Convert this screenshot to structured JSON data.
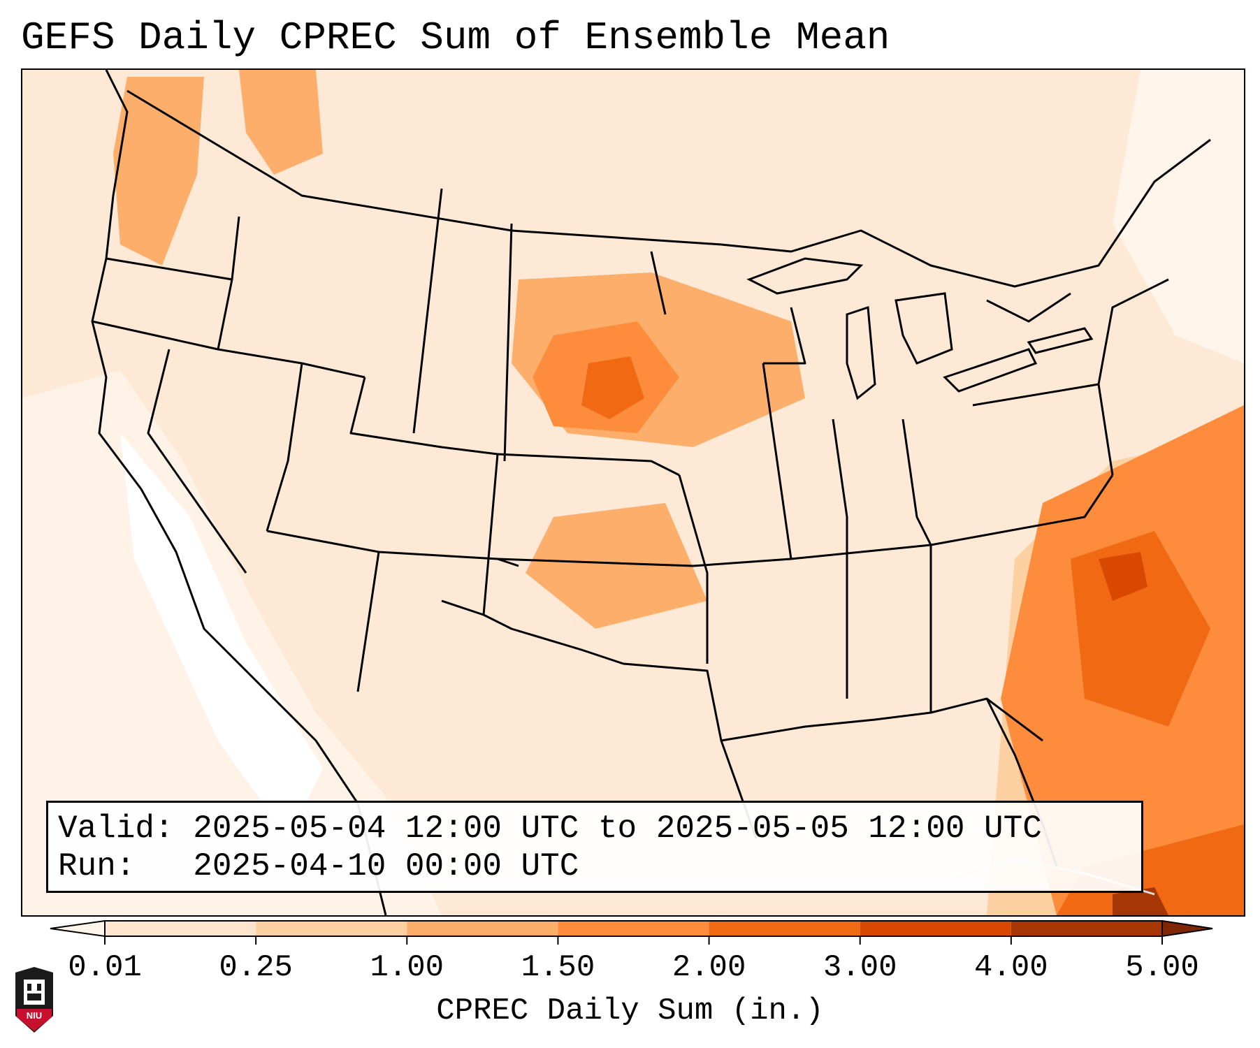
{
  "title": "GEFS Daily CPREC Sum of Ensemble Mean",
  "info": {
    "valid_label": "Valid:",
    "valid_value": "2025-05-04 12:00 UTC to 2025-05-05 12:00 UTC",
    "run_label": "Run:",
    "run_value": "2025-04-10 00:00 UTC"
  },
  "colorbar": {
    "label": "CPREC Daily Sum (in.)",
    "ticks": [
      "0.01",
      "0.25",
      "1.00",
      "1.50",
      "2.00",
      "3.00",
      "4.00",
      "5.00"
    ],
    "colors": [
      "#fff5eb",
      "#fee6ce",
      "#fdd0a2",
      "#fdae6b",
      "#fd8d3c",
      "#f16913",
      "#d94801",
      "#a63603",
      "#7f2704"
    ]
  },
  "logo": {
    "text": "NIU"
  }
}
